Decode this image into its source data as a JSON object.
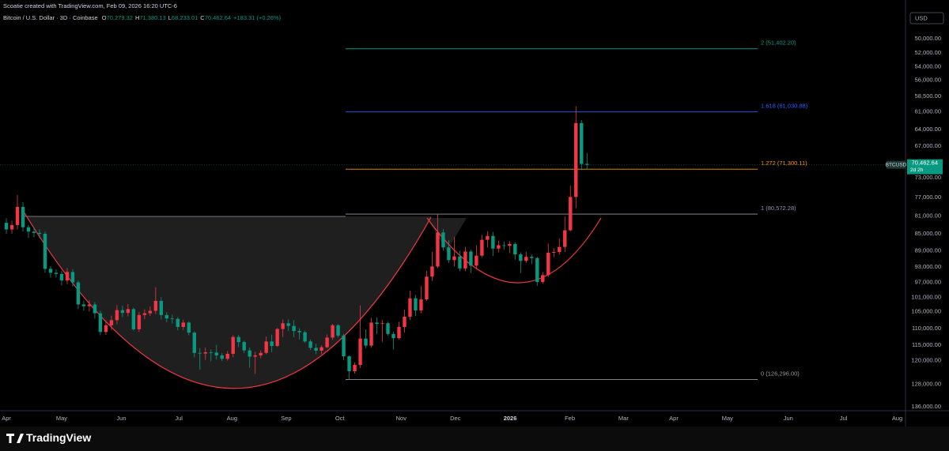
{
  "header": {
    "credit": "Scoatie created with TradingView.com, Feb 09, 2026 16:20 UTC-6",
    "symbol": "Bitcoin / U.S. Dollar · 3D · Coinbase",
    "ohlc": [
      {
        "key": "O",
        "text": "70,279.32"
      },
      {
        "key": "H",
        "text": "71,380.13"
      },
      {
        "key": "L",
        "text": "68,233.01"
      },
      {
        "key": "C",
        "text": "70,462.64"
      }
    ],
    "change": "+183.31 (+0.26%)"
  },
  "currency": "USD",
  "footer": "TradingView",
  "chart_data": {
    "type": "candlestick",
    "log": true,
    "up_color": "#089981",
    "down_color": "#f23645",
    "xlim": [
      -1.15,
      162.6
    ],
    "xticks": [
      {
        "value": 0,
        "label": "Apr"
      },
      {
        "value": 10,
        "label": "May"
      },
      {
        "value": 20.8,
        "label": "Jun"
      },
      {
        "value": 31.2,
        "label": "Jul"
      },
      {
        "value": 40.8,
        "label": "Aug"
      },
      {
        "value": 50.6,
        "label": "Sep"
      },
      {
        "value": 60.3,
        "label": "Oct"
      },
      {
        "value": 71.4,
        "label": "Nov"
      },
      {
        "value": 81.2,
        "label": "Dec"
      },
      {
        "value": 91.1,
        "label": "2026"
      },
      {
        "value": 101.9,
        "label": "Feb"
      },
      {
        "value": 111.6,
        "label": "Mar"
      },
      {
        "value": 120.7,
        "label": "Apr"
      },
      {
        "value": 130.4,
        "label": "May"
      },
      {
        "value": 141.4,
        "label": "Jun"
      },
      {
        "value": 151.4,
        "label": "Jul"
      },
      {
        "value": 161.1,
        "label": "Aug"
      }
    ],
    "ylim": [
      137500,
      45800
    ],
    "yticks": [
      {
        "value": 50000,
        "label": "50,000.00"
      },
      {
        "value": 52000,
        "label": "52,000.00"
      },
      {
        "value": 54000,
        "label": "54,000.00"
      },
      {
        "value": 56000,
        "label": "56,000.00"
      },
      {
        "value": 58500,
        "label": "58,500.00"
      },
      {
        "value": 61000,
        "label": "61,000.00"
      },
      {
        "value": 64000,
        "label": "64,000.00"
      },
      {
        "value": 67000,
        "label": "67,000.00"
      },
      {
        "value": 73000,
        "label": "73,000.00"
      },
      {
        "value": 77000,
        "label": "77,000.00"
      },
      {
        "value": 81000,
        "label": "81,000.00"
      },
      {
        "value": 85000,
        "label": "85,000.00"
      },
      {
        "value": 89000,
        "label": "89,000.00"
      },
      {
        "value": 93000,
        "label": "93,000.00"
      },
      {
        "value": 97000,
        "label": "97,000.00"
      },
      {
        "value": 101000,
        "label": "101,000.00"
      },
      {
        "value": 105000,
        "label": "105,000.00"
      },
      {
        "value": 110000,
        "label": "110,000.00"
      },
      {
        "value": 115000,
        "label": "115,000.00"
      },
      {
        "value": 120000,
        "label": "120,000.00"
      },
      {
        "value": 128000,
        "label": "128,000.00"
      },
      {
        "value": 136000,
        "label": "136,000.00"
      }
    ],
    "open": [
      82500,
      84000,
      83000,
      79000,
      83500,
      84500,
      84800,
      85000,
      93500,
      94500,
      94800,
      96500,
      94300,
      97000,
      103000,
      103500,
      103000,
      105500,
      111000,
      109000,
      107500,
      104600,
      105400,
      104300,
      110200,
      106000,
      105500,
      104800,
      102000,
      106000,
      107000,
      107100,
      109500,
      108200,
      111200,
      117500,
      117700,
      117300,
      117400,
      118300,
      119400,
      117800,
      112500,
      114100,
      116700,
      118700,
      118300,
      117500,
      113900,
      115300,
      110100,
      108400,
      109200,
      110700,
      111100,
      113900,
      115900,
      116800,
      115700,
      112700,
      109000,
      112100,
      118600,
      123500,
      121400,
      113000,
      115200,
      108200,
      108600,
      108400,
      111600,
      112900,
      109500,
      106500,
      101300,
      104700,
      101600,
      95500,
      92900,
      84700,
      88200,
      91300,
      90400,
      93400,
      89200,
      92700,
      90200,
      86400,
      85500,
      88500,
      87700,
      87800,
      87400,
      89900,
      91500,
      90500,
      90800,
      96900,
      95100,
      89500,
      89300,
      88100,
      84200,
      76900,
      62900,
      70279.32
    ],
    "high": [
      85000,
      85000,
      84000,
      84500,
      86000,
      85800,
      86000,
      94500,
      95800,
      95700,
      97800,
      97500,
      98100,
      104300,
      104700,
      105000,
      107000,
      112000,
      111900,
      110400,
      108700,
      106600,
      106400,
      110600,
      111000,
      107200,
      106300,
      105700,
      107300,
      108100,
      108500,
      110500,
      110400,
      112000,
      118900,
      123000,
      119800,
      120200,
      119600,
      120100,
      120000,
      118900,
      115700,
      117600,
      122300,
      124400,
      119200,
      117900,
      117300,
      115600,
      112500,
      110700,
      112600,
      113300,
      114300,
      116600,
      117900,
      117900,
      116000,
      113400,
      112700,
      119800,
      126200,
      124300,
      122400,
      116000,
      115900,
      111700,
      114000,
      112100,
      116400,
      113300,
      111200,
      107500,
      106300,
      105500,
      102000,
      96600,
      93300,
      89000,
      92000,
      92900,
      94100,
      94100,
      94600,
      93500,
      90600,
      88200,
      90300,
      89400,
      88800,
      89600,
      91200,
      94600,
      92000,
      92300,
      97900,
      97400,
      95600,
      90600,
      90000,
      89300,
      84400,
      79300,
      71500,
      71380.13
    ],
    "low": [
      81500,
      82000,
      76500,
      78000,
      83000,
      83600,
      84000,
      84500,
      92800,
      93600,
      94000,
      93300,
      93600,
      96500,
      101900,
      101800,
      102300,
      104800,
      107600,
      106200,
      103200,
      103300,
      102900,
      103900,
      105100,
      104400,
      103600,
      98300,
      101000,
      105200,
      105900,
      106600,
      107300,
      107800,
      110800,
      116000,
      115800,
      116400,
      115000,
      117500,
      116900,
      112000,
      111900,
      113700,
      115800,
      117200,
      116700,
      112400,
      111800,
      109800,
      107300,
      107300,
      107500,
      109900,
      110600,
      113300,
      114600,
      115100,
      111800,
      108600,
      108700,
      111600,
      118300,
      120600,
      103300,
      110200,
      106800,
      106700,
      107400,
      108000,
      110900,
      108000,
      104500,
      99200,
      100300,
      98000,
      94000,
      89300,
      80600,
      83900,
      86500,
      85700,
      89000,
      88100,
      88800,
      87700,
      85300,
      84400,
      84600,
      86600,
      86800,
      86700,
      87000,
      89400,
      89300,
      89900,
      90500,
      94300,
      87300,
      88400,
      86100,
      81100,
      74600,
      60100,
      62400,
      68233.01
    ],
    "close": [
      84000,
      83000,
      79000,
      83500,
      84500,
      84800,
      85000,
      93500,
      94500,
      94800,
      96500,
      94300,
      97000,
      103000,
      103500,
      103000,
      105500,
      111000,
      109000,
      107500,
      104600,
      105400,
      104300,
      110200,
      106000,
      105500,
      104800,
      102000,
      106000,
      107000,
      107100,
      109500,
      108200,
      111200,
      117500,
      117700,
      117300,
      117400,
      118300,
      119400,
      117800,
      112500,
      114100,
      116700,
      118700,
      118300,
      117500,
      113900,
      115300,
      110100,
      108400,
      109200,
      110700,
      111100,
      113900,
      115900,
      116800,
      115700,
      112700,
      109000,
      112100,
      118600,
      123500,
      121400,
      113000,
      115200,
      108200,
      108600,
      108400,
      111600,
      112900,
      109500,
      106500,
      101300,
      104700,
      101600,
      95500,
      92900,
      84700,
      88200,
      91300,
      90400,
      93400,
      89200,
      92700,
      90200,
      86400,
      85500,
      88500,
      87700,
      87800,
      87400,
      89900,
      91500,
      90500,
      90800,
      96900,
      95100,
      89500,
      89300,
      88100,
      84200,
      76900,
      62900,
      70300,
      70462.64
    ],
    "levels": [
      {
        "label": "2 (51,402.20)",
        "value": 51402.2,
        "color": "#089981"
      },
      {
        "label": "1.618 (61,030.88)",
        "value": 61030.88,
        "color": "#2962ff"
      },
      {
        "label": "1.272 (71,300.11)",
        "value": 71300.11,
        "color": "#ff9800"
      },
      {
        "label": "1 (80,572.28)",
        "value": 80572.28,
        "color": "#9598a1"
      },
      {
        "label": "0 (126,296.00)",
        "value": 126296.0,
        "color": "#9598a1"
      }
    ],
    "price_tag": {
      "symbol": "BTCUSD",
      "label": "70,462.64",
      "countdown": "2d 2h"
    }
  }
}
